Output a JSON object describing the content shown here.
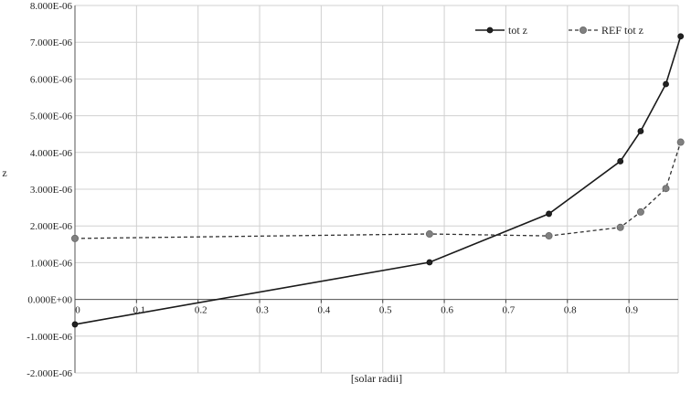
{
  "chart_data": {
    "type": "line",
    "xlabel": "[solar radii]",
    "ylabel": "z",
    "xlim": [
      0,
      0.98
    ],
    "ylim": [
      -2e-06,
      8e-06
    ],
    "x_ticks": [
      0,
      0.1,
      0.2,
      0.3,
      0.4,
      0.5,
      0.6,
      0.7,
      0.8,
      0.9
    ],
    "x_tick_labels": [
      "0",
      "0.1",
      "0.2",
      "0.3",
      "0.4",
      "0.5",
      "0.6",
      "0.7",
      "0.8",
      "0.9"
    ],
    "y_ticks": [
      -2e-06,
      -1e-06,
      0,
      1e-06,
      2e-06,
      3e-06,
      4e-06,
      5e-06,
      6e-06,
      7e-06,
      8e-06
    ],
    "y_tick_labels": [
      "-2.000E-06",
      "-1.000E-06",
      "0.000E+00",
      "1.000E-06",
      "2.000E-06",
      "3.000E-06",
      "4.000E-06",
      "5.000E-06",
      "6.000E-06",
      "7.000E-06",
      "8.000E-06"
    ],
    "grid": true,
    "legend_position": "top-right",
    "series": [
      {
        "name": "tot z",
        "style": "solid",
        "color": "#222222",
        "x": [
          0,
          0.576,
          0.77,
          0.886,
          0.919,
          0.96,
          0.984
        ],
        "y": [
          -6.8e-07,
          1.01e-06,
          2.33e-06,
          3.76e-06,
          4.58e-06,
          5.86e-06,
          7.16e-06
        ]
      },
      {
        "name": "REF tot z",
        "style": "dashed",
        "color": "#808080",
        "x": [
          0,
          0.576,
          0.77,
          0.886,
          0.919,
          0.96,
          0.984
        ],
        "y": [
          1.66e-06,
          1.78e-06,
          1.73e-06,
          1.96e-06,
          2.38e-06,
          3.02e-06,
          4.28e-06
        ]
      }
    ]
  }
}
